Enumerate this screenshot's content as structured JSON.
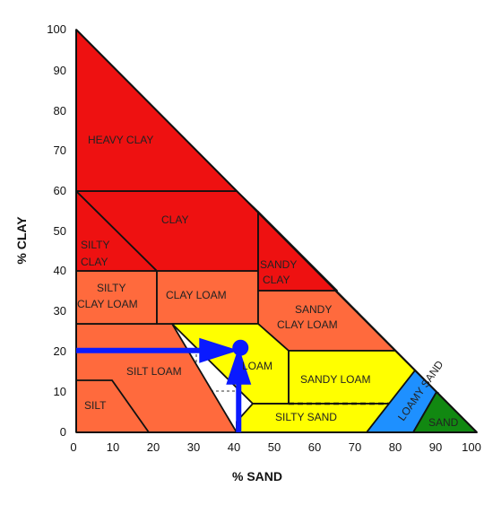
{
  "axes": {
    "y_label": "% CLAY",
    "x_label": "% SAND",
    "y_ticks": [
      "0",
      "10",
      "20",
      "30",
      "40",
      "50",
      "60",
      "70",
      "80",
      "90",
      "100"
    ],
    "x_ticks": [
      "0",
      "10",
      "20",
      "30",
      "40",
      "50",
      "60",
      "70",
      "80",
      "90",
      "100"
    ]
  },
  "zones": [
    {
      "name": "HEAVY CLAY",
      "color": "#ee1111"
    },
    {
      "name": "CLAY",
      "color": "#ee1111"
    },
    {
      "name": "SILTY CLAY",
      "color": "#ee1111"
    },
    {
      "name": "SANDY CLAY",
      "color": "#ee1111"
    },
    {
      "name": "SILTY CLAY LOAM",
      "color": "#ff6a3d"
    },
    {
      "name": "CLAY LOAM",
      "color": "#ff6a3d"
    },
    {
      "name": "SANDY CLAY LOAM",
      "color": "#ff6a3d"
    },
    {
      "name": "SILT LOAM",
      "color": "#ff6a3d"
    },
    {
      "name": "SILT",
      "color": "#ff6a3d"
    },
    {
      "name": "LOAM",
      "color": "#ffff00"
    },
    {
      "name": "SANDY LOAM",
      "color": "#ffff00"
    },
    {
      "name": "SILTY SAND",
      "color": "#ffff00"
    },
    {
      "name": "LOAMY SAND",
      "color": "#1e90ff"
    },
    {
      "name": "SAND",
      "color": "#118811"
    }
  ],
  "labels": {
    "heavy_clay": "HEAVY CLAY",
    "clay": "CLAY",
    "silty_clay_1": "SILTY",
    "silty_clay_2": "CLAY",
    "sandy_clay_1": "SANDY",
    "sandy_clay_2": "CLAY",
    "silty_clay_loam_1": "SILTY",
    "silty_clay_loam_2": "CLAY LOAM",
    "clay_loam": "CLAY LOAM",
    "sandy_clay_loam_1": "SANDY",
    "sandy_clay_loam_2": "CLAY LOAM",
    "silt_loam": "SILT LOAM",
    "silt": "SILT",
    "loam": "LOAM",
    "sandy_loam": "SANDY LOAM",
    "silty_sand": "SILTY SAND",
    "loamy_sand": "LOAMY SAND",
    "sand": "SAND"
  },
  "marker": {
    "sand_percent": 41,
    "clay_percent": 21,
    "color": "#0a1aff"
  }
}
